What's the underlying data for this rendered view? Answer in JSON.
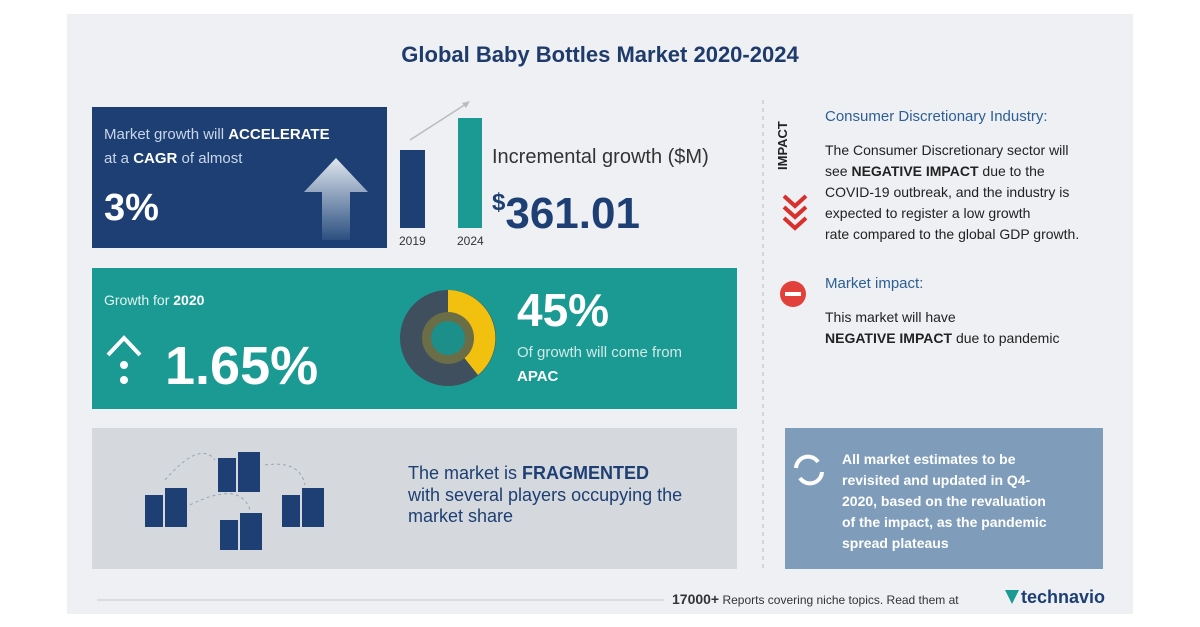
{
  "title": "Global Baby Bottles Market 2020-2024",
  "cagr": {
    "text1": "Market growth will",
    "emphasis1": "ACCELERATE",
    "text2": "at a",
    "emphasis2": "CAGR",
    "text3": "of almost",
    "value": "3%"
  },
  "incremental": {
    "years": [
      "2019",
      "2024"
    ],
    "label": "Incremental growth ($M)",
    "currency": "$",
    "value": "361.01"
  },
  "growth": {
    "label": "Growth for",
    "year": "2020",
    "value": "1.65%"
  },
  "region": {
    "share": "45%",
    "text": "Of growth will come from",
    "region": "APAC"
  },
  "vendors": {
    "text1": "The market is",
    "emphasis": "FRAGMENTED",
    "text2": "with several players occupying the",
    "text3": "market share"
  },
  "impact": {
    "tag": "IMPACT",
    "heading": "Consumer Discretionary Industry:",
    "line1": "The Consumer Discretionary sector will",
    "line2a": "see",
    "line2b": "NEGATIVE IMPACT",
    "line2c": "due to the",
    "line3": "COVID-19 outbreak, and the industry is",
    "line4": "expected to register a low growth",
    "line5": "rate compared to the global GDP growth."
  },
  "market_impact": {
    "heading": "Market impact:",
    "line1": "This market will have",
    "emphasis": "NEGATIVE IMPACT",
    "line2": "due to pandemic"
  },
  "note": {
    "lines": [
      "All market estimates to be",
      "revisited and updated in Q4-",
      "2020, based on the revaluation",
      "of the impact, as the pandemic",
      "spread plateaus"
    ]
  },
  "footer": {
    "count": "17000+",
    "text": "Reports covering niche topics. Read them at",
    "brand": "technavio"
  }
}
